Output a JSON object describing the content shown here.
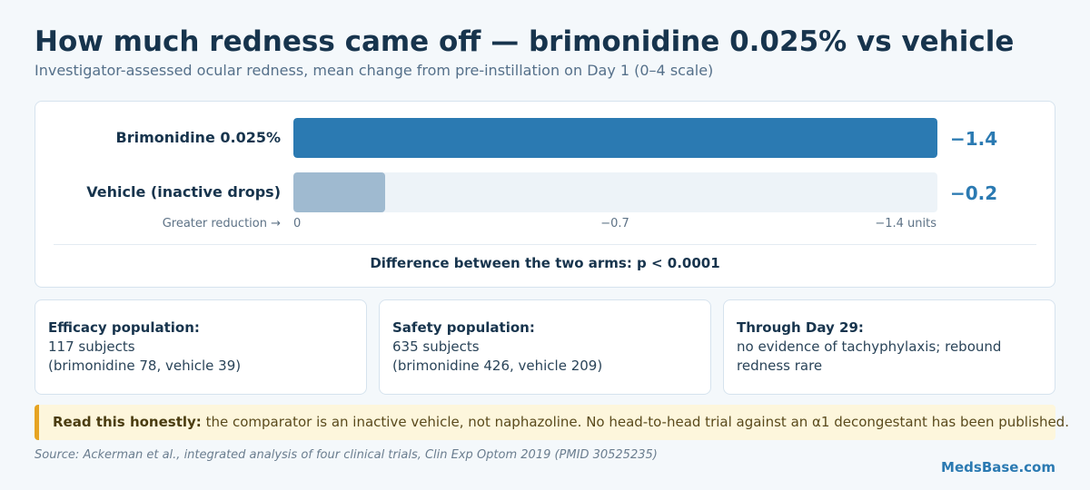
{
  "title": "How much redness came off — brimonidine 0.025% vs vehicle",
  "subtitle": "Investigator-assessed ocular redness, mean change from pre-instillation on Day 1 (0–4 scale)",
  "chart_data": {
    "type": "bar",
    "orientation": "horizontal",
    "categories": [
      "Brimonidine 0.025%",
      "Vehicle (inactive drops)"
    ],
    "values": [
      -1.4,
      -0.2
    ],
    "value_labels": [
      "−1.4",
      "−0.2"
    ],
    "colors": [
      "#2b7ab2",
      "#9fbad0"
    ],
    "xlim": [
      0,
      -1.4
    ],
    "ticks": [
      "0",
      "−0.7",
      "−1.4 units"
    ],
    "axis_direction_label": "Greater reduction →",
    "grid": false
  },
  "pvalue_text": "Difference between the two arms: p < 0.0001",
  "info_cards": [
    {
      "heading": "Efficacy population:",
      "line1": "117 subjects",
      "line2": "(brimonidine 78, vehicle 39)"
    },
    {
      "heading": "Safety population:",
      "line1": "635 subjects",
      "line2": "(brimonidine 426, vehicle 209)"
    },
    {
      "heading": "Through Day 29:",
      "line1": "no evidence of tachyphylaxis; rebound",
      "line2": "redness rare"
    }
  ],
  "note": {
    "lead": "Read this honestly:",
    "text": " the comparator is an inactive vehicle, not naphazoline. No head-to-head trial against an α1 decongestant has been published."
  },
  "source": "Source: Ackerman et al., integrated analysis of four clinical trials, Clin Exp Optom 2019 (PMID 30525235)",
  "brand": "MedsBase.com"
}
